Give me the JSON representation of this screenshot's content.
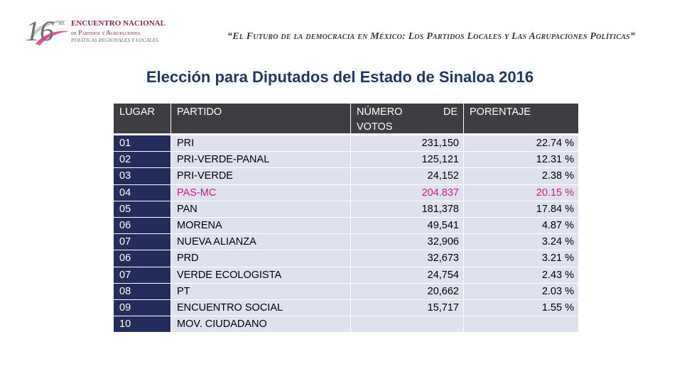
{
  "header": {
    "logo": {
      "number": "16",
      "superscript": "vo.",
      "line1": "ENCUENTRO NACIONAL",
      "line2": "de Partidos y Agrupaciones",
      "line3": "POLÍTICAS REGIONALES Y LOCALES"
    },
    "banner": "“El Futuro de la democracia en México: Los Partidos Locales y Las Agrupaciones Políticas”"
  },
  "title": "Elección para Diputados del Estado de Sinaloa 2016",
  "table": {
    "columns": {
      "lugar": "LUGAR",
      "partido": "PARTIDO",
      "votos_line1_a": "NÚMERO",
      "votos_line1_b": "DE",
      "votos_line2": "VOTOS",
      "porcentaje": "PORENTAJE"
    },
    "rows": [
      {
        "lugar": "01",
        "partido": "PRI",
        "votos": "231,150",
        "porcentaje": "22.74 %"
      },
      {
        "lugar": "02",
        "partido": "PRI-VERDE-PANAL",
        "votos": "125,121",
        "porcentaje": "12.31 %"
      },
      {
        "lugar": "03",
        "partido": "PRI-VERDE",
        "votos": "24,152",
        "porcentaje": "2.38 %"
      },
      {
        "lugar": "04",
        "partido": "PAS-MC",
        "votos": "204.837",
        "porcentaje": "20.15 %"
      },
      {
        "lugar": "05",
        "partido": "PAN",
        "votos": "181,378",
        "porcentaje": "17.84 %"
      },
      {
        "lugar": "06",
        "partido": "MORENA",
        "votos": "49,541",
        "porcentaje": "4.87 %"
      },
      {
        "lugar": "07",
        "partido": "NUEVA ALIANZA",
        "votos": "32,906",
        "porcentaje": "3.24 %"
      },
      {
        "lugar": "06",
        "partido": "PRD",
        "votos": "32,673",
        "porcentaje": "3.21 %"
      },
      {
        "lugar": "07",
        "partido": "VERDE ECOLOGISTA",
        "votos": "24,754",
        "porcentaje": "2.43 %"
      },
      {
        "lugar": "08",
        "partido": "PT",
        "votos": "20,662",
        "porcentaje": "2.03 %"
      },
      {
        "lugar": "09",
        "partido": "ENCUENTRO SOCIAL",
        "votos": "15,717",
        "porcentaje": "1.55 %"
      },
      {
        "lugar": "10",
        "partido": "MOV. CIUDADANO",
        "votos": "",
        "porcentaje": ""
      }
    ],
    "highlight_color": "#d6157f",
    "header_color": "#3d3d42",
    "lugar_color": "#232c5a",
    "row_color": "#dfe2ee"
  }
}
